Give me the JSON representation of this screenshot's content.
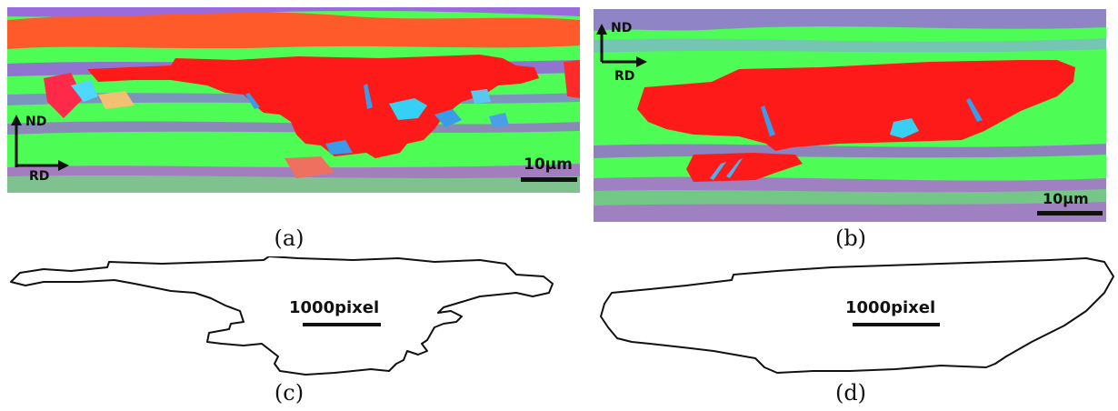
{
  "figure": {
    "panels": [
      {
        "caption": "(a)",
        "scale_bar": "10μm",
        "axes": {
          "vertical": "ND",
          "horizontal": "RD"
        }
      },
      {
        "caption": "(b)",
        "scale_bar": "10μm",
        "axes": {
          "vertical": "ND",
          "horizontal": "RD"
        }
      },
      {
        "caption": "(c)",
        "scale_bar": "1000pixel"
      },
      {
        "caption": "(d)",
        "scale_bar": "1000pixel"
      }
    ],
    "colors": {
      "grain_red": "#ff1a1a",
      "matrix_green": "#3dff4a",
      "band_purple": "#b05be8",
      "outline": "#111111"
    }
  }
}
